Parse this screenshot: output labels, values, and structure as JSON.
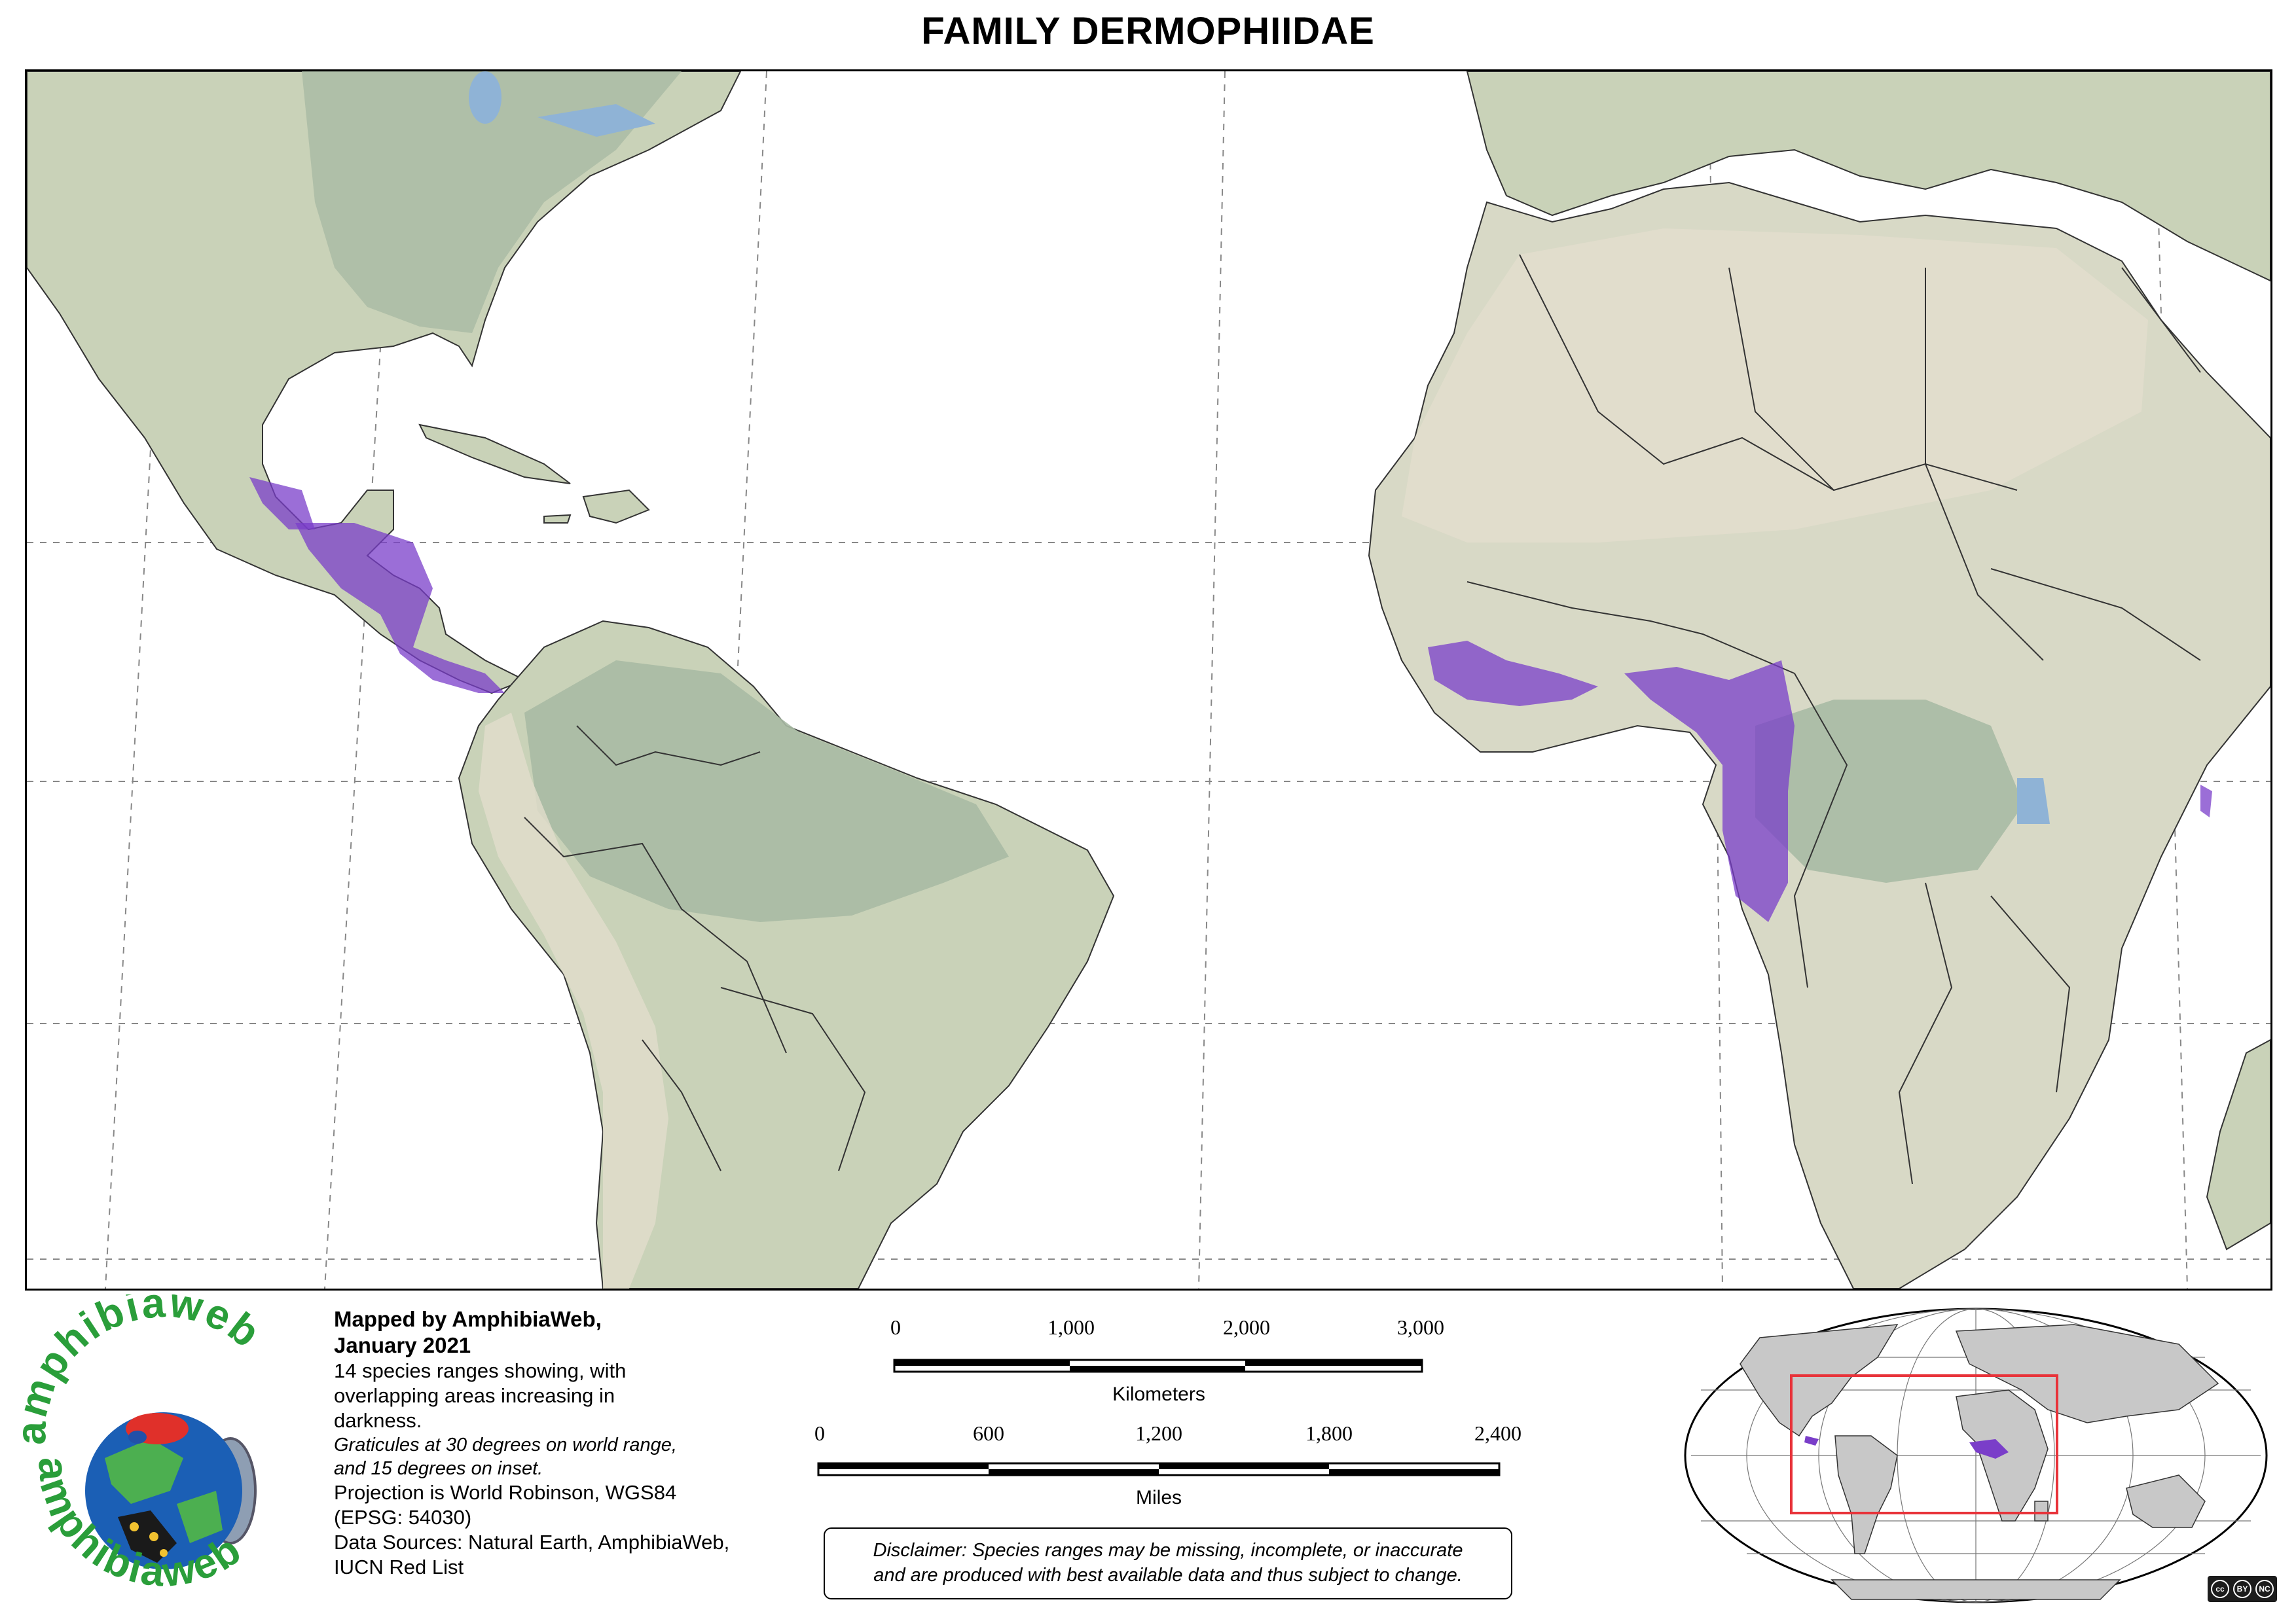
{
  "title": "FAMILY DERMOPHIIDAE",
  "credits": {
    "mapped_by": "Mapped by AmphibiaWeb,",
    "date": "January 2021",
    "species_note_1": "14 species ranges showing, with",
    "species_note_2": "overlapping areas increasing in",
    "species_note_3": "darkness.",
    "graticule_1": "Graticules at 30 degrees on world range,",
    "graticule_2": "and 15 degrees on inset.",
    "projection_1": "Projection is World Robinson, WGS84",
    "projection_2": "(EPSG: 54030)",
    "sources_1": "Data Sources: Natural Earth, AmphibiaWeb,",
    "sources_2": "IUCN Red List"
  },
  "scale_km": {
    "labels": [
      "0",
      "1,000",
      "2,000",
      "3,000"
    ],
    "unit": "Kilometers"
  },
  "scale_miles": {
    "labels": [
      "0",
      "600",
      "1,200",
      "1,800",
      "2,400"
    ],
    "unit": "Miles"
  },
  "disclaimer": {
    "line1": "Disclaimer: Species ranges may be missing, incomplete, or inaccurate",
    "line2": "and are produced with best available data and thus subject to change."
  },
  "logo": {
    "text_top": "amphibiaweb",
    "text_bottom": "amphibiaweb"
  },
  "license": {
    "badge": "cc",
    "terms": [
      "BY",
      "NC"
    ]
  },
  "colors": {
    "land": "#c9d2b8",
    "forest": "#a9baa4",
    "desert": "#e2ddcc",
    "water": "#ffffff",
    "lake": "#8fb3d6",
    "range": "#7a3ec9",
    "graticule": "#888888",
    "border": "#222222",
    "inset_box": "#e8333a",
    "logo_green": "#2a9e3a"
  }
}
